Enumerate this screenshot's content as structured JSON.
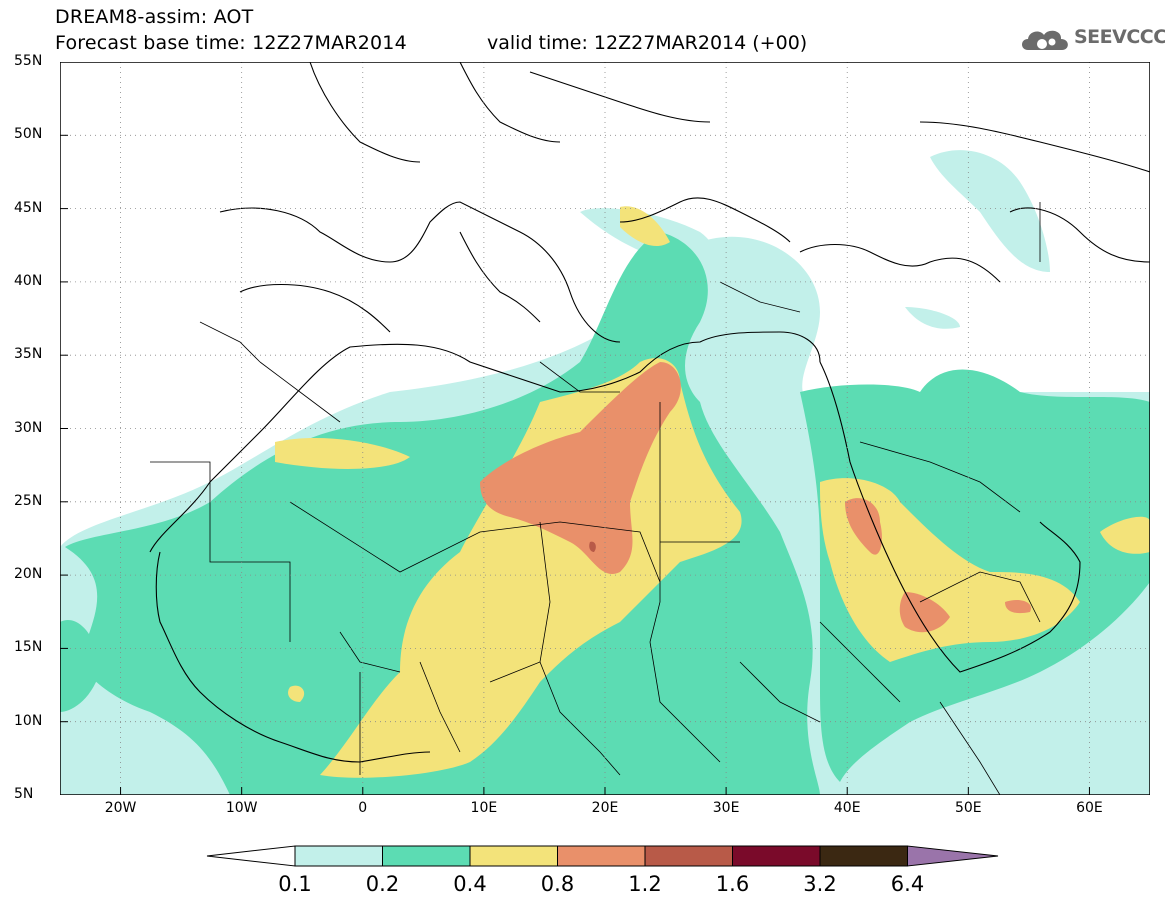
{
  "header": {
    "title": "DREAM8-assim: AOT",
    "base_time": "Forecast base time: 12Z27MAR2014",
    "valid_time": "valid time: 12Z27MAR2014 (+00)"
  },
  "logo": {
    "text": "SEEVCCC",
    "icon": "cloud-icon"
  },
  "map": {
    "lat_labels": [
      "55N",
      "50N",
      "45N",
      "40N",
      "35N",
      "30N",
      "25N",
      "20N",
      "15N",
      "10N",
      "5N"
    ],
    "lon_labels": [
      "20W",
      "10W",
      "0",
      "10E",
      "20E",
      "30E",
      "40E",
      "50E",
      "60E"
    ],
    "lon_range": [
      -25,
      65
    ],
    "lat_range": [
      5,
      55
    ]
  },
  "colorbar": {
    "labels": [
      "0.1",
      "0.2",
      "0.4",
      "0.8",
      "1.2",
      "1.6",
      "3.2",
      "6.4"
    ],
    "colors": [
      "#c2f0ea",
      "#5cdcb3",
      "#f3e37a",
      "#e9906a",
      "#b85a48",
      "#7a0a2a",
      "#3b2812",
      "#9a74aa"
    ]
  }
}
